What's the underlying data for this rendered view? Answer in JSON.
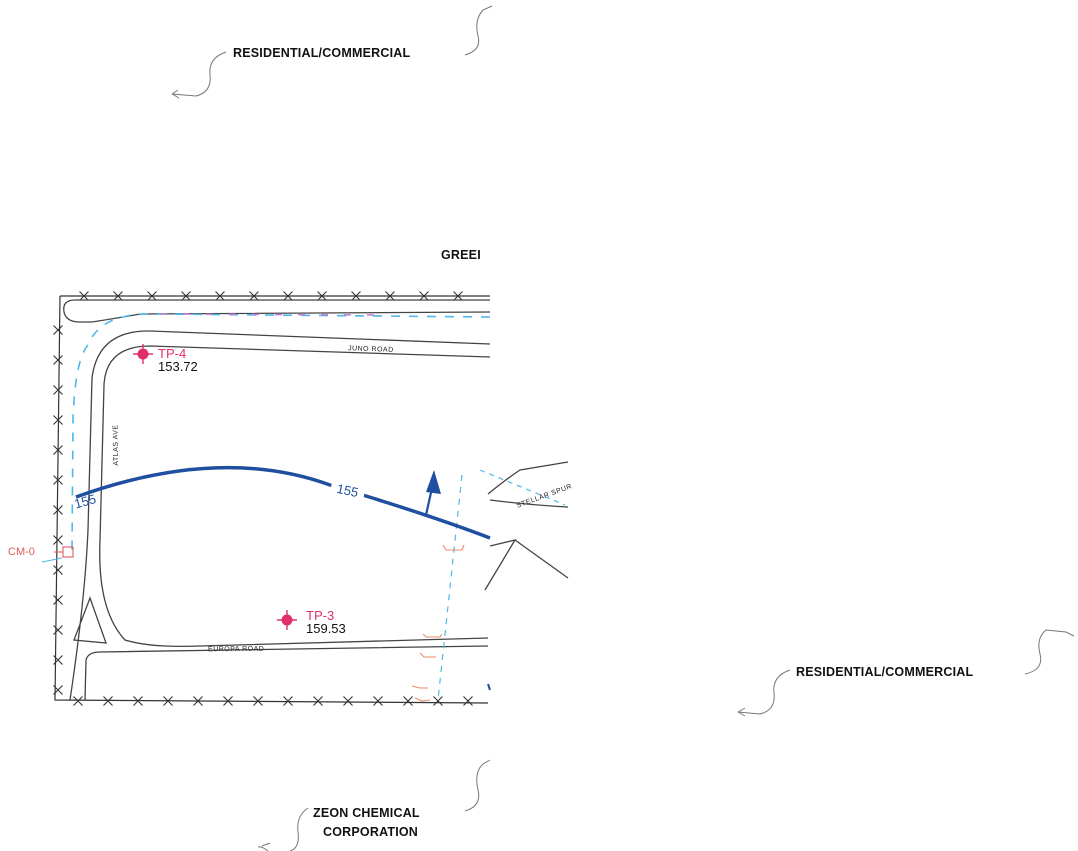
{
  "areas": {
    "residential_top": "RESIDENTIAL/COMMERCIAL",
    "residential_right": "RESIDENTIAL/COMMERCIAL",
    "green_partial": "GREEI",
    "zeon_line1": "ZEON CHEMICAL",
    "zeon_line2": "CORPORATION"
  },
  "roads": {
    "juno": "JUNO ROAD",
    "atlas": "ATLAS AVE",
    "europa": "EUROPA ROAD",
    "stellar": "STELLAR SPUR"
  },
  "test_points": [
    {
      "id": "TP-4",
      "elevation": "153.72"
    },
    {
      "id": "TP-3",
      "elevation": "159.53"
    }
  ],
  "monitor": {
    "id": "CM-0"
  },
  "contour": {
    "label_left": "155",
    "label_right": "155"
  },
  "colors": {
    "road_lines": "#444444",
    "fence": "#333333",
    "test_point": "#e0306a",
    "contour_line": "#1f4fa0",
    "dashed_boundary": "#4fb8ea",
    "dashed_magenta": "#c080d8",
    "monitor": "#e05a5a"
  },
  "icons": {
    "flow_direction": "arrow-up-icon",
    "test_point_marker": "crosshair-icon",
    "fence_marker": "x-mark-icon"
  }
}
